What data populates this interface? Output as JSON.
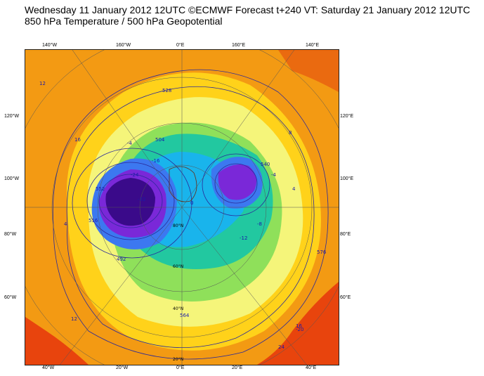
{
  "header": {
    "line1": "Wednesday 11 January 2012 12UTC ©ECMWF Forecast t+240 VT: Saturday 21 January 2012 12UTC",
    "line2": "850 hPa Temperature / 500 hPa Geopotential"
  },
  "axes": {
    "top": [
      "140°W",
      "160°W",
      "0°E",
      "160°E",
      "140°E"
    ],
    "bottom": [
      "40°W",
      "20°W",
      "0°E",
      "20°E",
      "40°E"
    ],
    "left": [
      "120°W",
      "100°W",
      "80°W",
      "60°W"
    ],
    "right": [
      "120°E",
      "100°E",
      "80°E",
      "60°E"
    ],
    "parallels": [
      "20°N",
      "40°N",
      "60°N",
      "80°N"
    ]
  },
  "colors": {
    "background": "#f39a13",
    "very_warm": "#e8440d",
    "warm": "#ffd21a",
    "mild": "#f5f57a",
    "cool": "#8fe05a",
    "cold": "#22c8a0",
    "colder": "#19b4ec",
    "very_cold": "#3c78f0",
    "extreme_cold": "#7a28d8",
    "core_cold": "#3a0a8a",
    "contour": "#2a2a9a",
    "coast": "#6b2a10"
  },
  "contour_labels": [
    "12",
    "16",
    "-4",
    "-16",
    "-24",
    "-32",
    "-12",
    "-8",
    "-4",
    "4",
    "8",
    "12",
    "16",
    "20",
    "24",
    "528",
    "540",
    "552",
    "564",
    "576",
    "492",
    "504",
    "516",
    "-20",
    "4",
    "0"
  ]
}
